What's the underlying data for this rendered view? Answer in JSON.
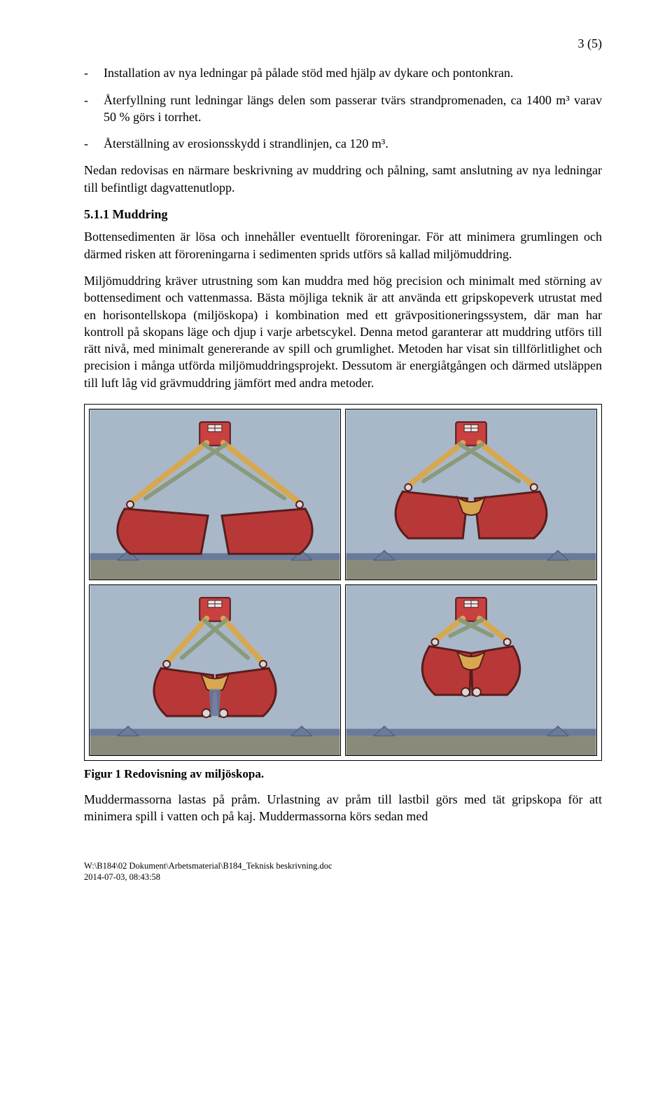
{
  "page_number": "3 (5)",
  "bullets": [
    "Installation av nya ledningar på pålade stöd med hjälp av dykare och pontonkran.",
    "Återfyllning runt ledningar längs delen som passerar tvärs strandpromenaden, ca 1400 m³ varav 50 % görs i torrhet.",
    "Återställning av erosionsskydd i strandlinjen, ca 120 m³."
  ],
  "intro_para": "Nedan redovisas en närmare beskrivning av muddring och pålning, samt anslutning av nya ledningar till befintligt dagvattenutlopp.",
  "section_heading": "5.1.1 Muddring",
  "para1": "Bottensedimenten är lösa och innehåller eventuellt föroreningar. För att minimera grumlingen och därmed risken att föroreningarna i sedimenten sprids utförs så kallad miljömuddring.",
  "para2": "Miljömuddring kräver utrustning som kan muddra med hög precision och minimalt med störning av bottensediment och vattenmassa. Bästa möjliga teknik är att använda ett gripskopeverk utrustat med en horisontellskopa (miljöskopa) i kombination med ett grävpositioneringssystem, där man har kontroll på skopans läge och djup i varje arbetscykel. Denna metod garanterar att muddring utförs till rätt nivå, med minimalt genererande av spill och grumlighet. Metoden har visat sin tillförlitlighet och precision i många utförda miljömuddringsprojekt. Dessutom är energiåtgången och därmed utsläppen till luft låg vid grävmuddring jämfört med andra metoder.",
  "figure_caption": "Figur 1 Redovisning av miljöskopa.",
  "closing_para": "Muddermassorna lastas på pråm. Urlastning av pråm till lastbil görs med tät gripskopa för att minimera spill i vatten och på kaj. Muddermassorna körs sedan med",
  "footer_path": "W:\\B184\\02 Dokument\\Arbetsmaterial\\B184_Teknisk beskrivning.doc",
  "footer_date": "2014-07-03, 08:43:58",
  "diagram": {
    "type": "infographic",
    "panels": 4,
    "background_color": "#a8b8c8",
    "ground_color": "#8a8a7a",
    "water_color": "#6a7a9a",
    "bucket_fill": "#b83838",
    "bucket_stroke": "#5a1c1c",
    "arm_color": "#d8a850",
    "piston_color": "#8a9a7a",
    "head_color": "#c84040",
    "sediment_color": "#6a7a9a",
    "states": [
      {
        "open": 1.0,
        "depth": 0
      },
      {
        "open": 0.55,
        "depth": 0
      },
      {
        "open": 0.25,
        "depth": 18
      },
      {
        "open": 0.0,
        "depth": 0
      }
    ]
  }
}
